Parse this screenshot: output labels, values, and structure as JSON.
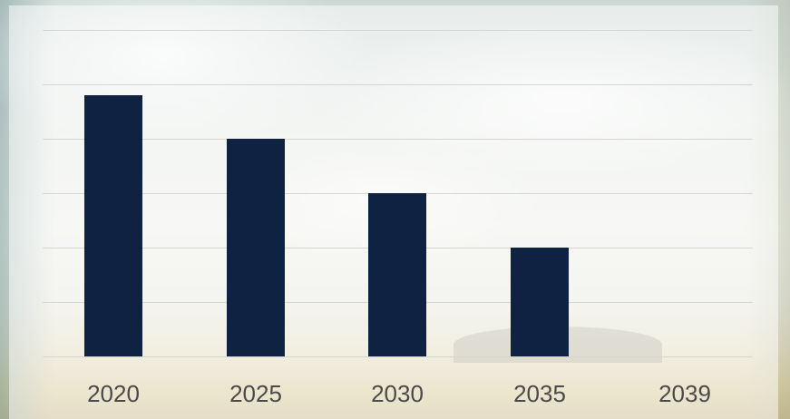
{
  "chart_data": {
    "type": "bar",
    "title": "",
    "xlabel": "",
    "ylabel": "",
    "categories": [
      "2020",
      "2025",
      "2030",
      "2035",
      "2039"
    ],
    "values": [
      4.8,
      4.0,
      3.0,
      2.0,
      0
    ],
    "ylim": [
      0,
      6
    ],
    "yticks": [
      0,
      1,
      2,
      3,
      4,
      5,
      6
    ],
    "show_y_tick_labels": false,
    "grid": true,
    "legend": "none",
    "bar_color": "#0f2242"
  }
}
